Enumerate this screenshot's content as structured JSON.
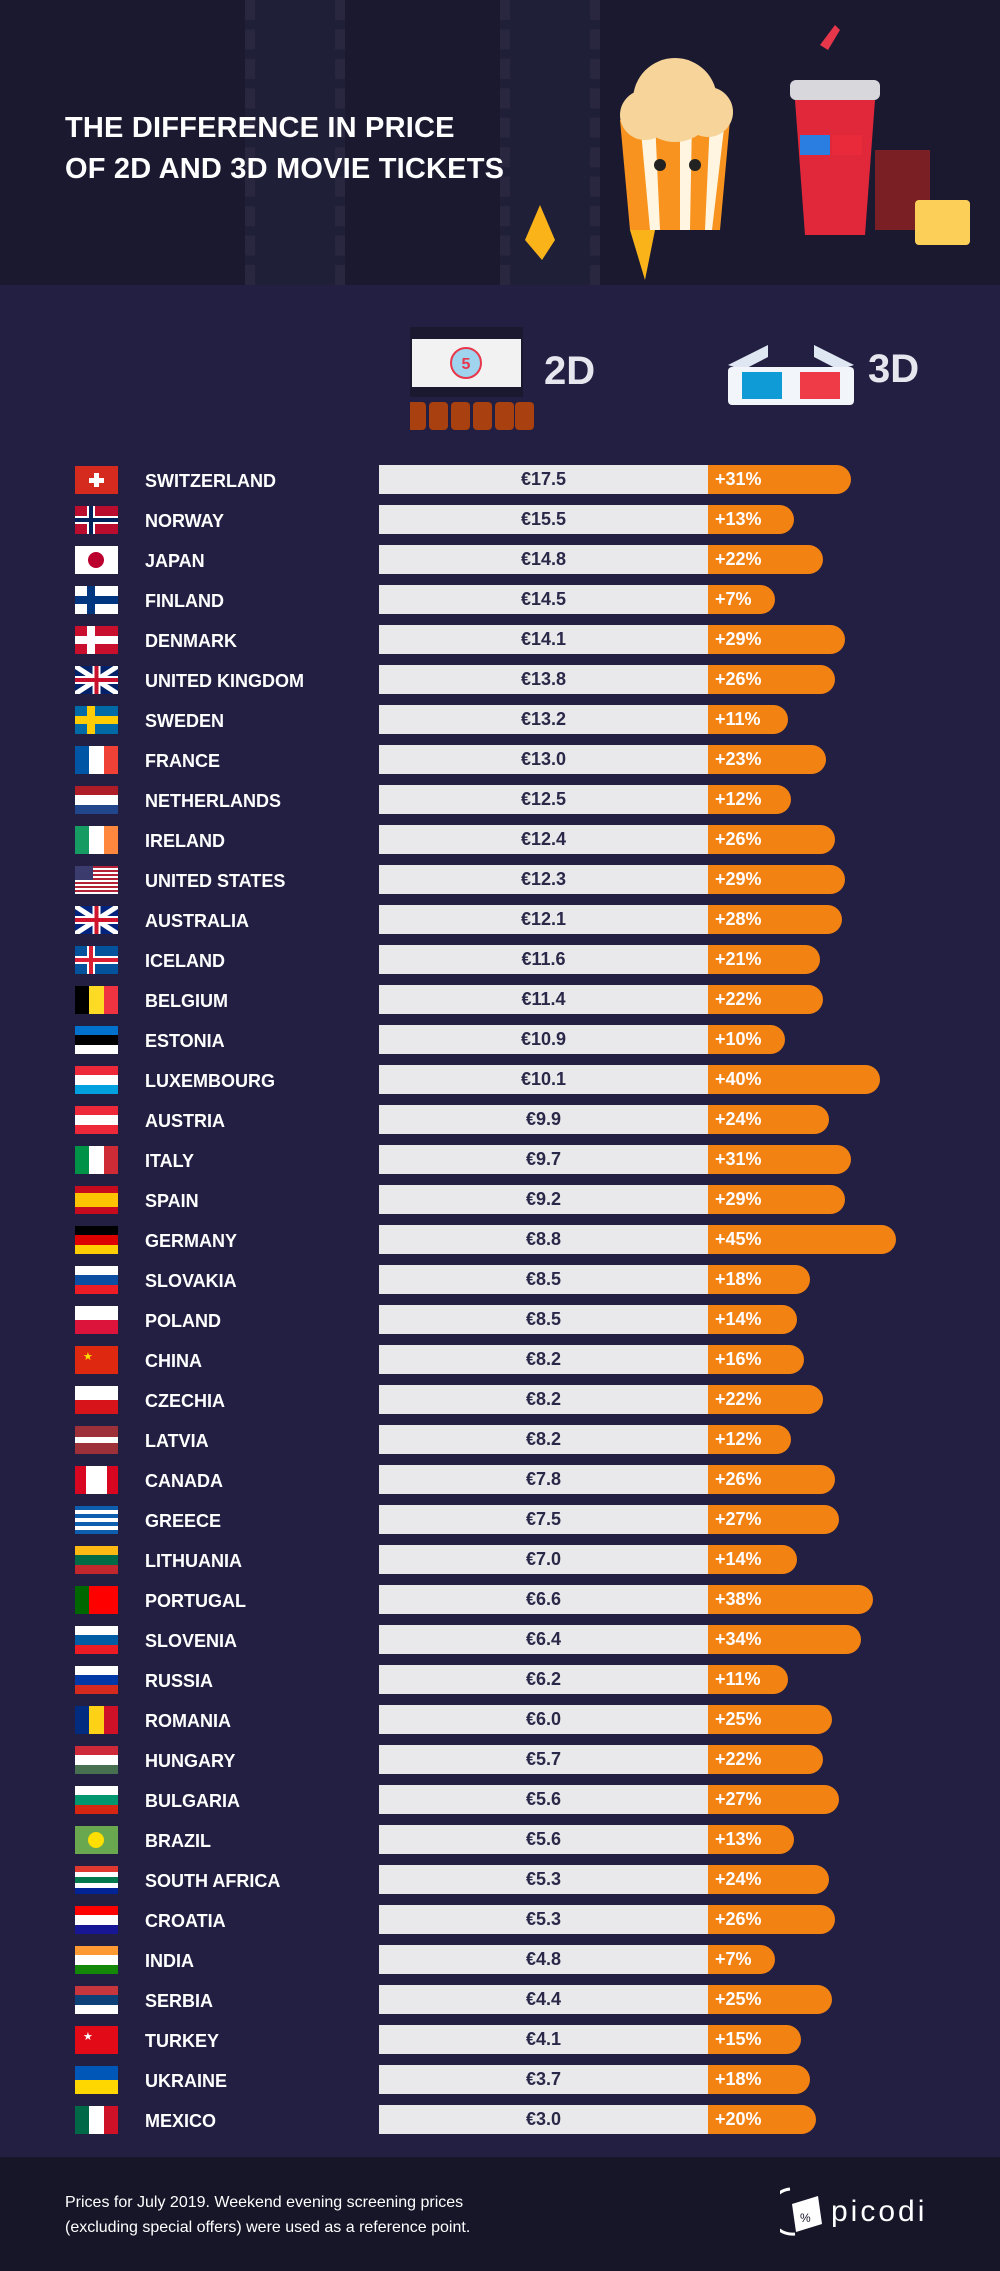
{
  "header": {
    "title_line1": "THE DIFFERENCE IN PRICE",
    "title_line2": "OF 2D AND 3D MOVIE TICKETS"
  },
  "legend": {
    "label_2d": "2D",
    "label_3d": "3D",
    "screen_number": "5"
  },
  "colors": {
    "background": "#231f42",
    "header_bg": "#1a1930",
    "bar_2d": "#e9e9ec",
    "bar_3d": "#f28212",
    "footer_bg": "#171629"
  },
  "rows": [
    {
      "country": "SWITZERLAND",
      "price_2d": "€17.5",
      "diff_3d": "+31%",
      "pct": 31,
      "flag": {
        "type": "swiss",
        "colors": [
          "#d52b1e",
          "#ffffff"
        ]
      }
    },
    {
      "country": "NORWAY",
      "price_2d": "€15.5",
      "diff_3d": "+13%",
      "pct": 13,
      "flag": {
        "type": "nordic",
        "colors": [
          "#ba0c2f",
          "#ffffff",
          "#00205b"
        ]
      }
    },
    {
      "country": "JAPAN",
      "price_2d": "€14.8",
      "diff_3d": "+22%",
      "pct": 22,
      "flag": {
        "type": "disc",
        "colors": [
          "#ffffff",
          "#bc002d"
        ]
      }
    },
    {
      "country": "FINLAND",
      "price_2d": "€14.5",
      "diff_3d": "+7%",
      "pct": 7,
      "flag": {
        "type": "nordic",
        "colors": [
          "#ffffff",
          "#003580",
          "#003580"
        ]
      }
    },
    {
      "country": "DENMARK",
      "price_2d": "€14.1",
      "diff_3d": "+29%",
      "pct": 29,
      "flag": {
        "type": "nordic",
        "colors": [
          "#c8102e",
          "#ffffff",
          "#ffffff"
        ]
      }
    },
    {
      "country": "UNITED KINGDOM",
      "price_2d": "€13.8",
      "diff_3d": "+26%",
      "pct": 26,
      "flag": {
        "type": "uk",
        "colors": [
          "#012169",
          "#ffffff",
          "#c8102e"
        ]
      }
    },
    {
      "country": "SWEDEN",
      "price_2d": "€13.2",
      "diff_3d": "+11%",
      "pct": 11,
      "flag": {
        "type": "nordic",
        "colors": [
          "#006aa7",
          "#fecc00",
          "#fecc00"
        ]
      }
    },
    {
      "country": "FRANCE",
      "price_2d": "€13.0",
      "diff_3d": "+23%",
      "pct": 23,
      "flag": {
        "type": "v",
        "colors": [
          "#0055a4",
          "#ffffff",
          "#ef4135"
        ]
      }
    },
    {
      "country": "NETHERLANDS",
      "price_2d": "€12.5",
      "diff_3d": "+12%",
      "pct": 12,
      "flag": {
        "type": "h",
        "colors": [
          "#ae1c28",
          "#ffffff",
          "#21468b"
        ]
      }
    },
    {
      "country": "IRELAND",
      "price_2d": "€12.4",
      "diff_3d": "+26%",
      "pct": 26,
      "flag": {
        "type": "v",
        "colors": [
          "#169b62",
          "#ffffff",
          "#ff883e"
        ]
      }
    },
    {
      "country": "UNITED STATES",
      "price_2d": "€12.3",
      "diff_3d": "+29%",
      "pct": 29,
      "flag": {
        "type": "us",
        "colors": [
          "#b22234",
          "#ffffff",
          "#3c3b6e"
        ]
      }
    },
    {
      "country": "AUSTRALIA",
      "price_2d": "€12.1",
      "diff_3d": "+28%",
      "pct": 28,
      "flag": {
        "type": "uk",
        "colors": [
          "#00247d",
          "#ffffff",
          "#cf142b"
        ]
      }
    },
    {
      "country": "ICELAND",
      "price_2d": "€11.6",
      "diff_3d": "+21%",
      "pct": 21,
      "flag": {
        "type": "nordic",
        "colors": [
          "#02529c",
          "#ffffff",
          "#dc1e35"
        ]
      }
    },
    {
      "country": "BELGIUM",
      "price_2d": "€11.4",
      "diff_3d": "+22%",
      "pct": 22,
      "flag": {
        "type": "v",
        "colors": [
          "#000000",
          "#fdda24",
          "#ef3340"
        ]
      }
    },
    {
      "country": "ESTONIA",
      "price_2d": "€10.9",
      "diff_3d": "+10%",
      "pct": 10,
      "flag": {
        "type": "h",
        "colors": [
          "#0072ce",
          "#000000",
          "#ffffff"
        ]
      }
    },
    {
      "country": "LUXEMBOURG",
      "price_2d": "€10.1",
      "diff_3d": "+40%",
      "pct": 40,
      "flag": {
        "type": "h",
        "colors": [
          "#ed2939",
          "#ffffff",
          "#00a1de"
        ]
      }
    },
    {
      "country": "AUSTRIA",
      "price_2d": "€9.9",
      "diff_3d": "+24%",
      "pct": 24,
      "flag": {
        "type": "h",
        "colors": [
          "#ed2939",
          "#ffffff",
          "#ed2939"
        ]
      }
    },
    {
      "country": "ITALY",
      "price_2d": "€9.7",
      "diff_3d": "+31%",
      "pct": 31,
      "flag": {
        "type": "v",
        "colors": [
          "#009246",
          "#ffffff",
          "#ce2b37"
        ]
      }
    },
    {
      "country": "SPAIN",
      "price_2d": "€9.2",
      "diff_3d": "+29%",
      "pct": 29,
      "flag": {
        "type": "h",
        "colors": [
          "#c60b1e",
          "#ffc400",
          "#ffc400",
          "#c60b1e"
        ]
      }
    },
    {
      "country": "GERMANY",
      "price_2d": "€8.8",
      "diff_3d": "+45%",
      "pct": 45,
      "flag": {
        "type": "h",
        "colors": [
          "#000000",
          "#dd0000",
          "#ffce00"
        ]
      }
    },
    {
      "country": "SLOVAKIA",
      "price_2d": "€8.5",
      "diff_3d": "+18%",
      "pct": 18,
      "flag": {
        "type": "h",
        "colors": [
          "#ffffff",
          "#0b4ea2",
          "#ee1c25"
        ]
      }
    },
    {
      "country": "POLAND",
      "price_2d": "€8.5",
      "diff_3d": "+14%",
      "pct": 14,
      "flag": {
        "type": "h",
        "colors": [
          "#ffffff",
          "#dc143c"
        ]
      }
    },
    {
      "country": "CHINA",
      "price_2d": "€8.2",
      "diff_3d": "+16%",
      "pct": 16,
      "flag": {
        "type": "star",
        "colors": [
          "#de2910",
          "#ffde00"
        ]
      }
    },
    {
      "country": "CZECHIA",
      "price_2d": "€8.2",
      "diff_3d": "+22%",
      "pct": 22,
      "flag": {
        "type": "h",
        "colors": [
          "#ffffff",
          "#d7141a"
        ]
      }
    },
    {
      "country": "LATVIA",
      "price_2d": "€8.2",
      "diff_3d": "+12%",
      "pct": 12,
      "flag": {
        "type": "h",
        "colors": [
          "#9e3039",
          "#9e3039",
          "#ffffff",
          "#9e3039",
          "#9e3039"
        ]
      }
    },
    {
      "country": "CANADA",
      "price_2d": "€7.8",
      "diff_3d": "+26%",
      "pct": 26,
      "flag": {
        "type": "v",
        "colors": [
          "#d80621",
          "#ffffff",
          "#ffffff",
          "#d80621"
        ]
      }
    },
    {
      "country": "GREECE",
      "price_2d": "€7.5",
      "diff_3d": "+27%",
      "pct": 27,
      "flag": {
        "type": "h",
        "colors": [
          "#0d5eaf",
          "#ffffff",
          "#0d5eaf",
          "#ffffff",
          "#0d5eaf",
          "#ffffff",
          "#0d5eaf"
        ]
      }
    },
    {
      "country": "LITHUANIA",
      "price_2d": "€7.0",
      "diff_3d": "+14%",
      "pct": 14,
      "flag": {
        "type": "h",
        "colors": [
          "#fdb913",
          "#006a44",
          "#c1272d"
        ]
      }
    },
    {
      "country": "PORTUGAL",
      "price_2d": "€6.6",
      "diff_3d": "+38%",
      "pct": 38,
      "flag": {
        "type": "v",
        "colors": [
          "#006600",
          "#ff0000",
          "#ff0000"
        ]
      }
    },
    {
      "country": "SLOVENIA",
      "price_2d": "€6.4",
      "diff_3d": "+34%",
      "pct": 34,
      "flag": {
        "type": "h",
        "colors": [
          "#ffffff",
          "#005da4",
          "#ed1c24"
        ]
      }
    },
    {
      "country": "RUSSIA",
      "price_2d": "€6.2",
      "diff_3d": "+11%",
      "pct": 11,
      "flag": {
        "type": "h",
        "colors": [
          "#ffffff",
          "#0039a6",
          "#d52b1e"
        ]
      }
    },
    {
      "country": "ROMANIA",
      "price_2d": "€6.0",
      "diff_3d": "+25%",
      "pct": 25,
      "flag": {
        "type": "v",
        "colors": [
          "#002b7f",
          "#fcd116",
          "#ce1126"
        ]
      }
    },
    {
      "country": "HUNGARY",
      "price_2d": "€5.7",
      "diff_3d": "+22%",
      "pct": 22,
      "flag": {
        "type": "h",
        "colors": [
          "#ce2939",
          "#ffffff",
          "#477050"
        ]
      }
    },
    {
      "country": "BULGARIA",
      "price_2d": "€5.6",
      "diff_3d": "+27%",
      "pct": 27,
      "flag": {
        "type": "h",
        "colors": [
          "#ffffff",
          "#00966e",
          "#d62612"
        ]
      }
    },
    {
      "country": "BRAZIL",
      "price_2d": "€5.6",
      "diff_3d": "+13%",
      "pct": 13,
      "flag": {
        "type": "disc",
        "colors": [
          "#6aa84f",
          "#fedf00"
        ]
      }
    },
    {
      "country": "SOUTH AFRICA",
      "price_2d": "€5.3",
      "diff_3d": "+24%",
      "pct": 24,
      "flag": {
        "type": "h",
        "colors": [
          "#de3831",
          "#ffffff",
          "#007a4d",
          "#ffffff",
          "#002395"
        ]
      }
    },
    {
      "country": "CROATIA",
      "price_2d": "€5.3",
      "diff_3d": "+26%",
      "pct": 26,
      "flag": {
        "type": "h",
        "colors": [
          "#ff0000",
          "#ffffff",
          "#171796"
        ]
      }
    },
    {
      "country": "INDIA",
      "price_2d": "€4.8",
      "diff_3d": "+7%",
      "pct": 7,
      "flag": {
        "type": "h",
        "colors": [
          "#ff9933",
          "#ffffff",
          "#138808"
        ]
      }
    },
    {
      "country": "SERBIA",
      "price_2d": "€4.4",
      "diff_3d": "+25%",
      "pct": 25,
      "flag": {
        "type": "h",
        "colors": [
          "#c6363c",
          "#0c4076",
          "#ffffff"
        ]
      }
    },
    {
      "country": "TURKEY",
      "price_2d": "€4.1",
      "diff_3d": "+15%",
      "pct": 15,
      "flag": {
        "type": "star",
        "colors": [
          "#e30a17",
          "#ffffff"
        ]
      }
    },
    {
      "country": "UKRAINE",
      "price_2d": "€3.7",
      "diff_3d": "+18%",
      "pct": 18,
      "flag": {
        "type": "h",
        "colors": [
          "#0057b7",
          "#ffd700"
        ]
      }
    },
    {
      "country": "MEXICO",
      "price_2d": "€3.0",
      "diff_3d": "+20%",
      "pct": 20,
      "flag": {
        "type": "v",
        "colors": [
          "#006847",
          "#ffffff",
          "#ce1126"
        ]
      }
    }
  ],
  "footer": {
    "note_line1": "Prices for July 2019. Weekend evening screening prices",
    "note_line2": "(excluding special offers) were used as a reference point.",
    "logo": "picodi"
  }
}
